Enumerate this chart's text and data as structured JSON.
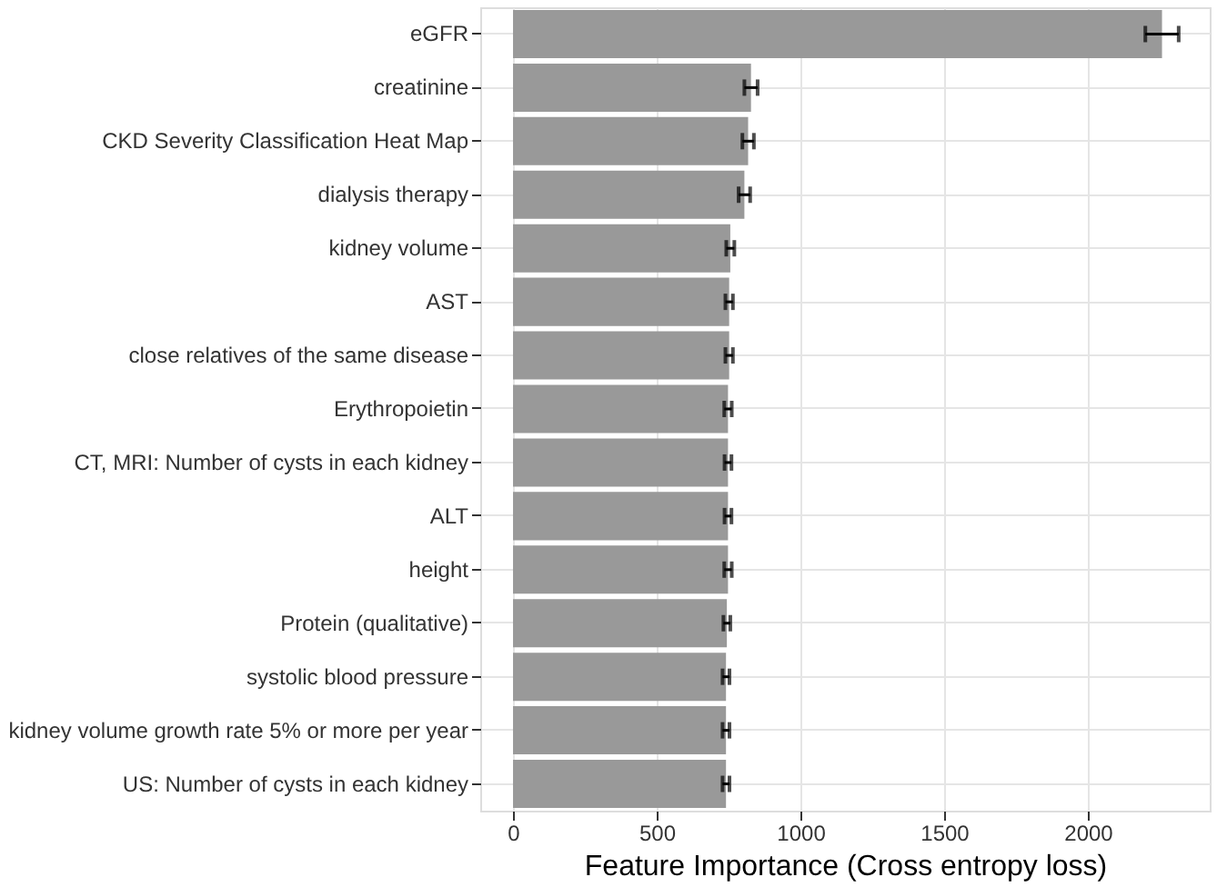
{
  "chart_data": {
    "type": "bar",
    "orientation": "horizontal",
    "xlabel": "Feature Importance (Cross entropy loss)",
    "categories": [
      "eGFR",
      "creatinine",
      "CKD Severity Classification Heat Map",
      "dialysis therapy",
      "kidney volume",
      "AST",
      "close relatives of the same disease",
      "Erythropoietin",
      "CT, MRI: Number of cysts in each kidney",
      "ALT",
      "height",
      "Protein (qualitative)",
      "systolic blood pressure",
      "kidney volume growth rate 5% or more per year",
      "US: Number of cysts in each kidney"
    ],
    "values": [
      2258,
      828,
      818,
      805,
      756,
      752,
      752,
      748,
      748,
      748,
      748,
      744,
      741,
      741,
      741
    ],
    "errors": [
      58,
      23,
      20,
      20,
      14,
      13,
      13,
      13,
      12,
      12,
      13,
      12,
      12,
      12,
      12
    ],
    "color": "#999999",
    "xlim": [
      -114,
      2424
    ],
    "xticks": [
      0,
      500,
      1000,
      1500,
      2000
    ],
    "grid": true
  }
}
